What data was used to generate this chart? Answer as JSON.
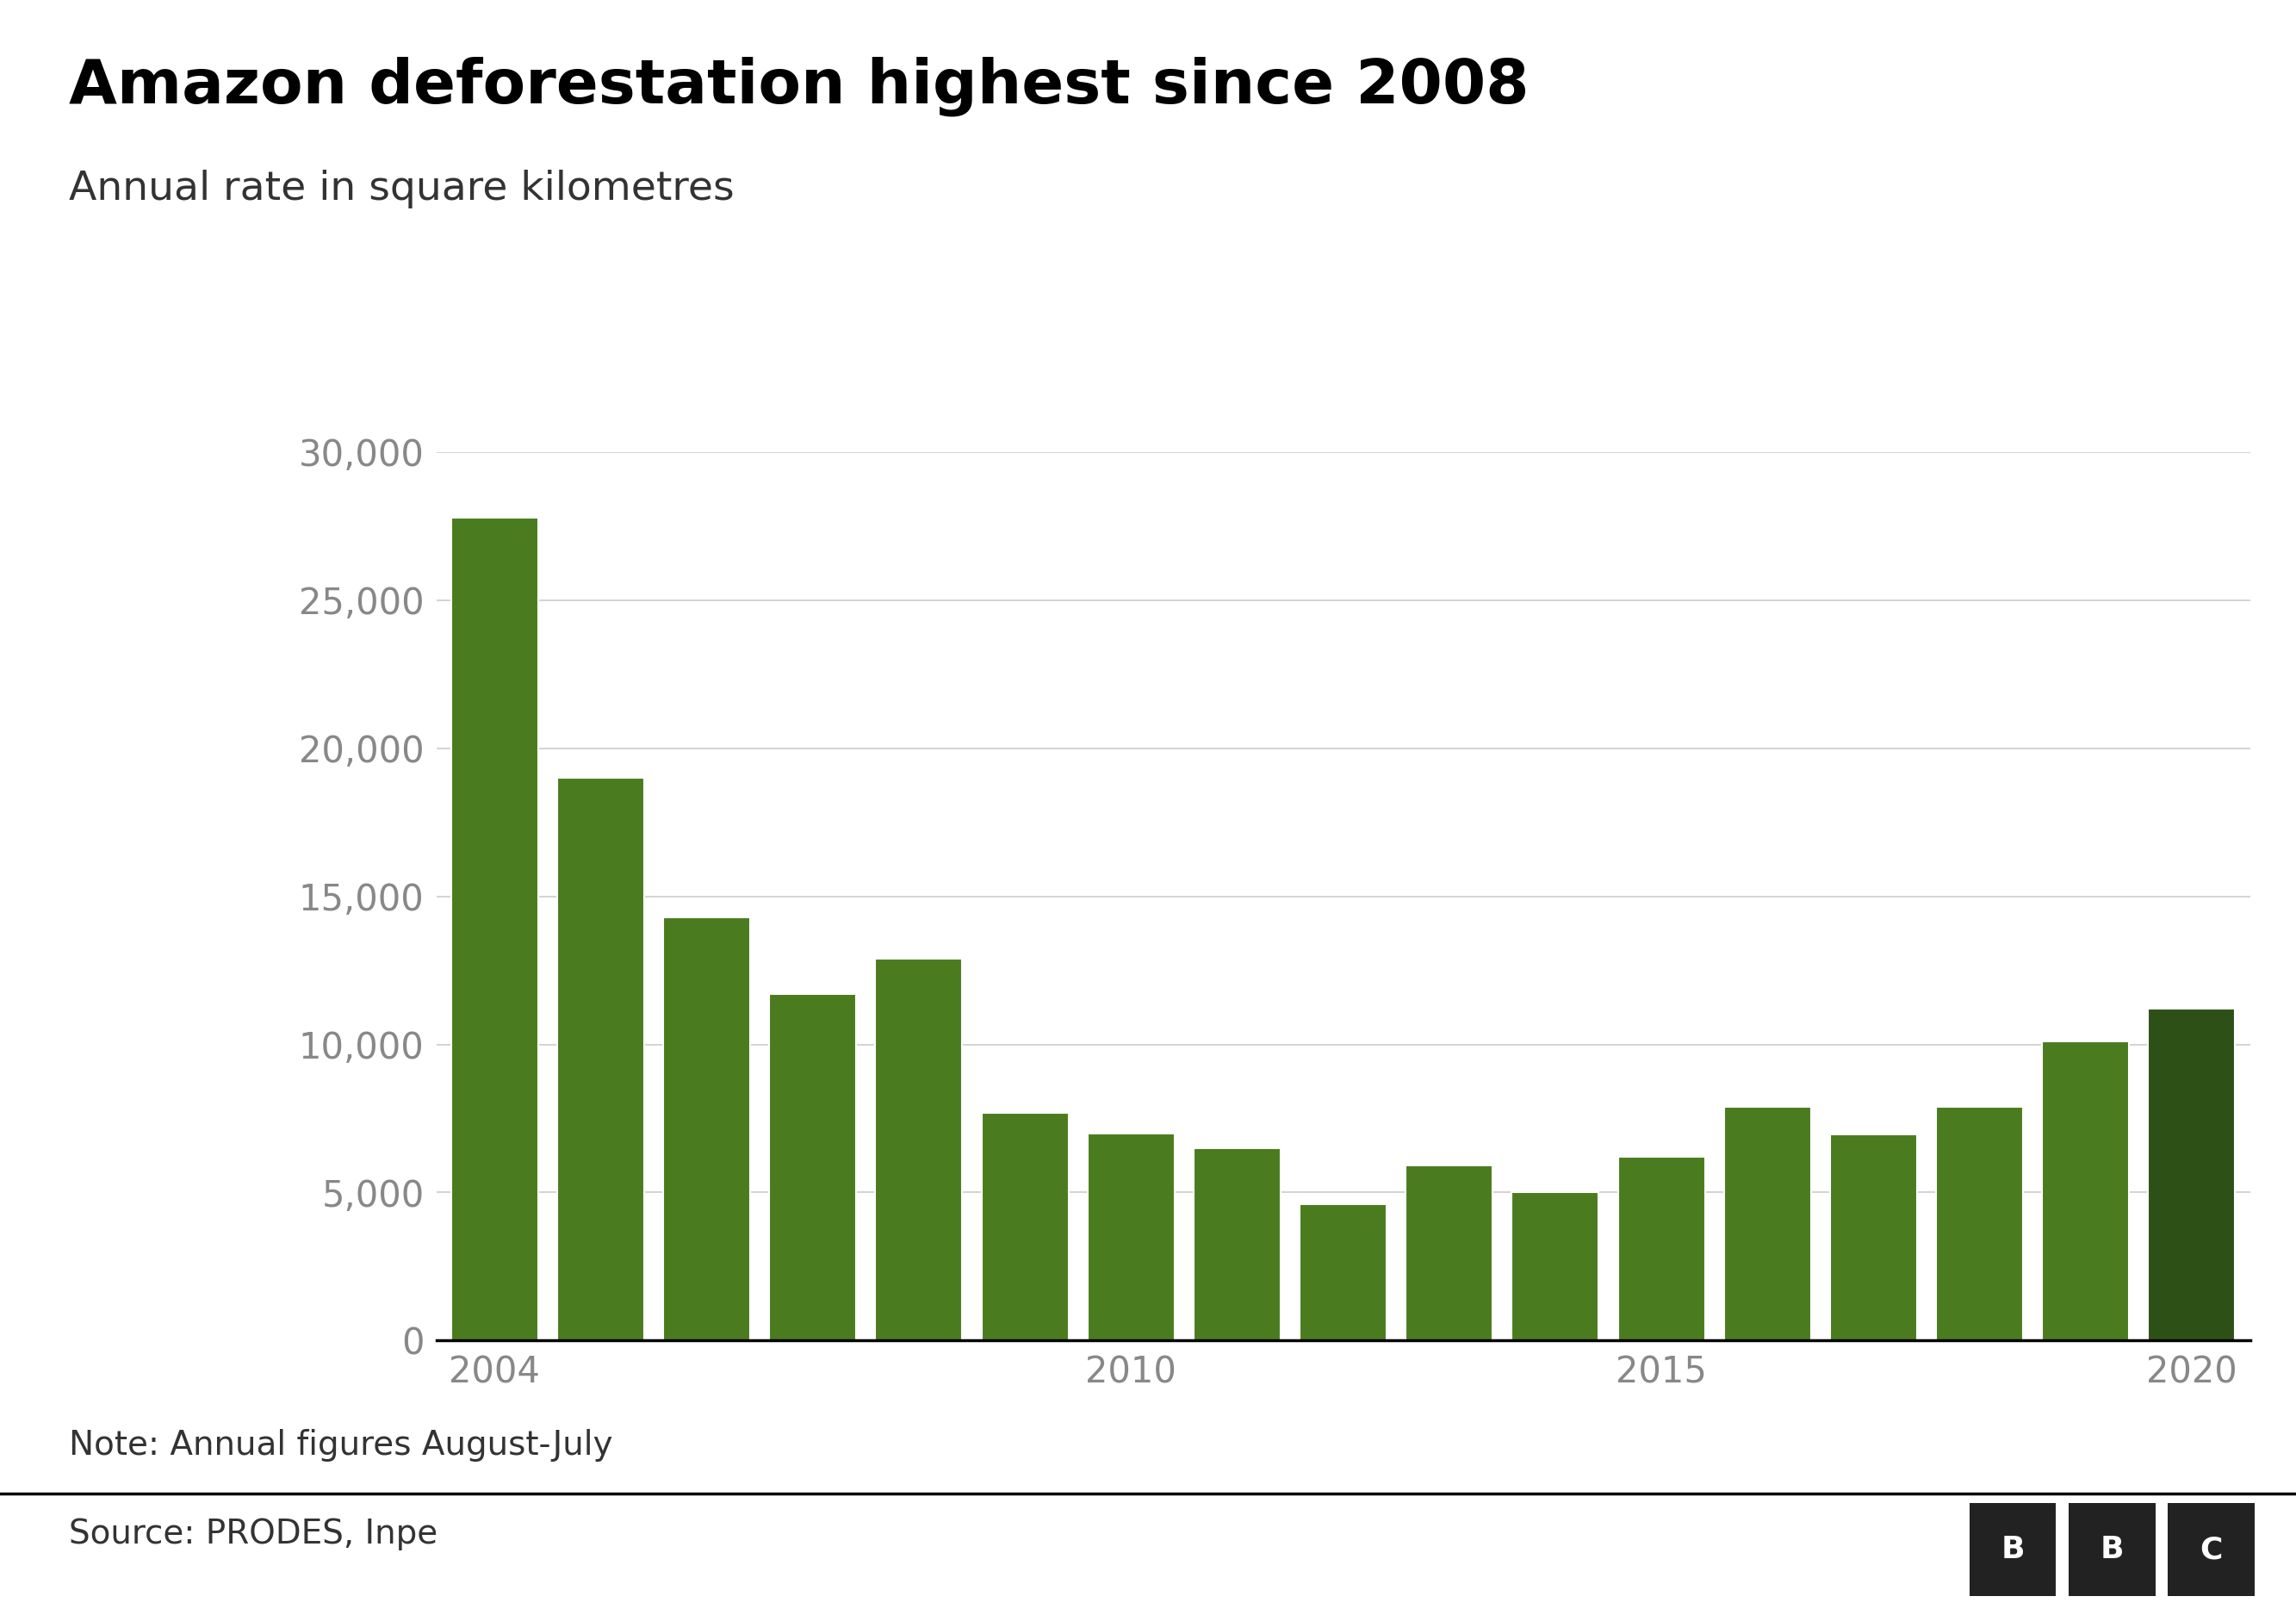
{
  "title": "Amazon deforestation highest since 2008",
  "subtitle": "Annual rate in square kilometres",
  "note": "Note: Annual figures August-July",
  "source": "Source: PRODES, Inpe",
  "years": [
    2004,
    2005,
    2006,
    2007,
    2008,
    2009,
    2010,
    2011,
    2012,
    2013,
    2014,
    2015,
    2016,
    2017,
    2018,
    2019,
    2020
  ],
  "values": [
    27800,
    19000,
    14300,
    11700,
    12900,
    7700,
    7000,
    6500,
    4600,
    5900,
    5000,
    6200,
    7900,
    6950,
    7900,
    10100,
    11200
  ],
  "bar_colors": [
    "#4a7c1f",
    "#4a7c1f",
    "#4a7c1f",
    "#4a7c1f",
    "#4a7c1f",
    "#4a7c1f",
    "#4a7c1f",
    "#4a7c1f",
    "#4a7c1f",
    "#4a7c1f",
    "#4a7c1f",
    "#4a7c1f",
    "#4a7c1f",
    "#4a7c1f",
    "#4a7c1f",
    "#4a7c1f",
    "#2d5016"
  ],
  "ylim": [
    0,
    30000
  ],
  "yticks": [
    0,
    5000,
    10000,
    15000,
    20000,
    25000,
    30000
  ],
  "xtick_years": [
    2004,
    2010,
    2015,
    2020
  ],
  "background_color": "#ffffff",
  "title_fontsize": 52,
  "subtitle_fontsize": 34,
  "note_fontsize": 28,
  "source_fontsize": 28,
  "tick_fontsize": 30,
  "ytick_color": "#888888",
  "xtick_color": "#888888",
  "bar_edge_color": "white",
  "grid_color": "#cccccc",
  "title_color": "#000000",
  "subtitle_color": "#333333",
  "note_color": "#333333",
  "source_color": "#333333",
  "bbc_box_color": "#222222",
  "bbc_text_color": "#ffffff",
  "bottom_line_color": "#000000"
}
